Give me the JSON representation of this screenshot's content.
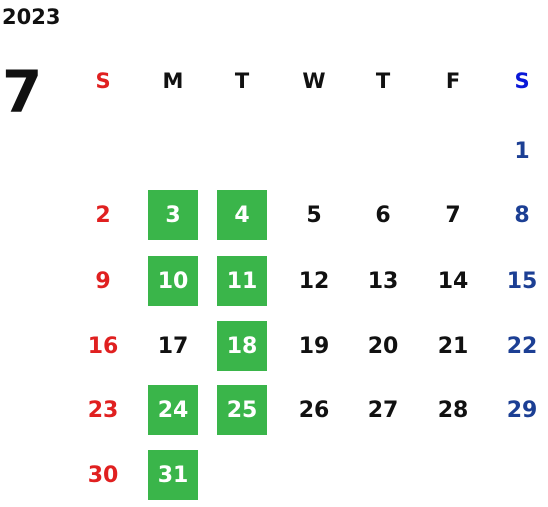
{
  "year": "2023",
  "month": "7",
  "weekdays": [
    "S",
    "M",
    "T",
    "W",
    "T",
    "F",
    "S"
  ],
  "weeks": [
    [
      null,
      null,
      null,
      null,
      null,
      null,
      {
        "day": "1"
      }
    ],
    [
      {
        "day": "2"
      },
      {
        "day": "3",
        "marked": true
      },
      {
        "day": "4",
        "marked": true
      },
      {
        "day": "5"
      },
      {
        "day": "6"
      },
      {
        "day": "7"
      },
      {
        "day": "8"
      }
    ],
    [
      {
        "day": "9"
      },
      {
        "day": "10",
        "marked": true
      },
      {
        "day": "11",
        "marked": true
      },
      {
        "day": "12"
      },
      {
        "day": "13"
      },
      {
        "day": "14"
      },
      {
        "day": "15"
      }
    ],
    [
      {
        "day": "16"
      },
      {
        "day": "17"
      },
      {
        "day": "18",
        "marked": true
      },
      {
        "day": "19"
      },
      {
        "day": "20"
      },
      {
        "day": "21"
      },
      {
        "day": "22"
      }
    ],
    [
      {
        "day": "23"
      },
      {
        "day": "24",
        "marked": true
      },
      {
        "day": "25",
        "marked": true
      },
      {
        "day": "26"
      },
      {
        "day": "27"
      },
      {
        "day": "28"
      },
      {
        "day": "29"
      }
    ],
    [
      {
        "day": "30"
      },
      {
        "day": "31",
        "marked": true
      },
      null,
      null,
      null,
      null,
      null
    ]
  ]
}
